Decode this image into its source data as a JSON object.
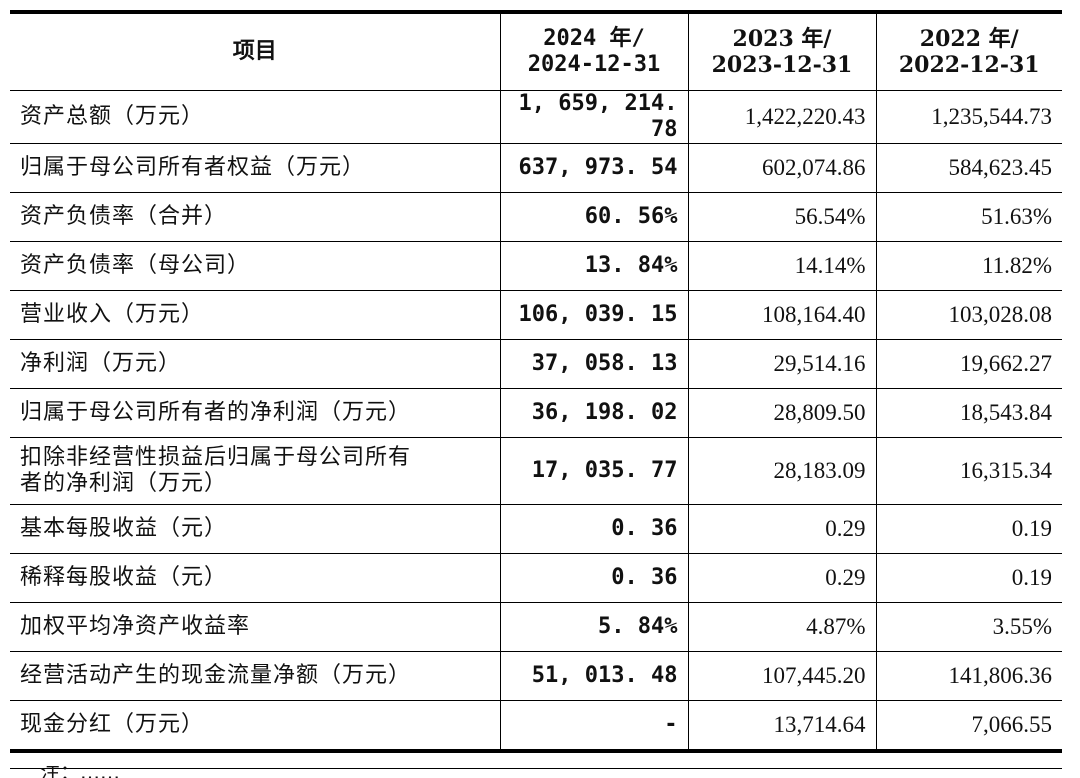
{
  "table": {
    "header": {
      "item": "项目",
      "col2024": [
        "2024 年/",
        "2024-12-31"
      ],
      "col2023": [
        "2023 年/",
        "2023-12-31"
      ],
      "col2022": [
        "2022 年/",
        "2022-12-31"
      ]
    },
    "rows": [
      {
        "item": [
          "资产总额（万元）"
        ],
        "v2024": "1, 659, 214. 78",
        "v2023": "1,422,220.43",
        "v2022": "1,235,544.73"
      },
      {
        "item": [
          "归属于母公司所有者权益（万元）"
        ],
        "v2024": "637, 973. 54",
        "v2023": "602,074.86",
        "v2022": "584,623.45"
      },
      {
        "item": [
          "资产负债率（合并）"
        ],
        "v2024": "60. 56%",
        "v2023": "56.54%",
        "v2022": "51.63%"
      },
      {
        "item": [
          "资产负债率（母公司）"
        ],
        "v2024": "13. 84%",
        "v2023": "14.14%",
        "v2022": "11.82%"
      },
      {
        "item": [
          "营业收入（万元）"
        ],
        "v2024": "106, 039. 15",
        "v2023": "108,164.40",
        "v2022": "103,028.08"
      },
      {
        "item": [
          "净利润（万元）"
        ],
        "v2024": "37, 058. 13",
        "v2023": "29,514.16",
        "v2022": "19,662.27"
      },
      {
        "item": [
          "归属于母公司所有者的净利润（万元）"
        ],
        "v2024": "36, 198. 02",
        "v2023": "28,809.50",
        "v2022": "18,543.84"
      },
      {
        "item": [
          "扣除非经营性损益后归属于母公司所有",
          "者的净利润（万元）"
        ],
        "v2024": "17, 035. 77",
        "v2023": "28,183.09",
        "v2022": "16,315.34"
      },
      {
        "item": [
          "基本每股收益（元）"
        ],
        "v2024": "0. 36",
        "v2023": "0.29",
        "v2022": "0.19"
      },
      {
        "item": [
          "稀释每股收益（元）"
        ],
        "v2024": "0. 36",
        "v2023": "0.29",
        "v2022": "0.19"
      },
      {
        "item": [
          "加权平均净资产收益率"
        ],
        "v2024": "5. 84%",
        "v2023": "4.87%",
        "v2022": "3.55%"
      },
      {
        "item": [
          "经营活动产生的现金流量净额（万元）"
        ],
        "v2024": "51, 013. 48",
        "v2023": "107,445.20",
        "v2022": "141,806.36"
      },
      {
        "item": [
          "现金分红（万元）"
        ],
        "v2024": "-",
        "v2023": "13,714.64",
        "v2022": "7,066.55"
      }
    ]
  },
  "footnote": "注：……"
}
